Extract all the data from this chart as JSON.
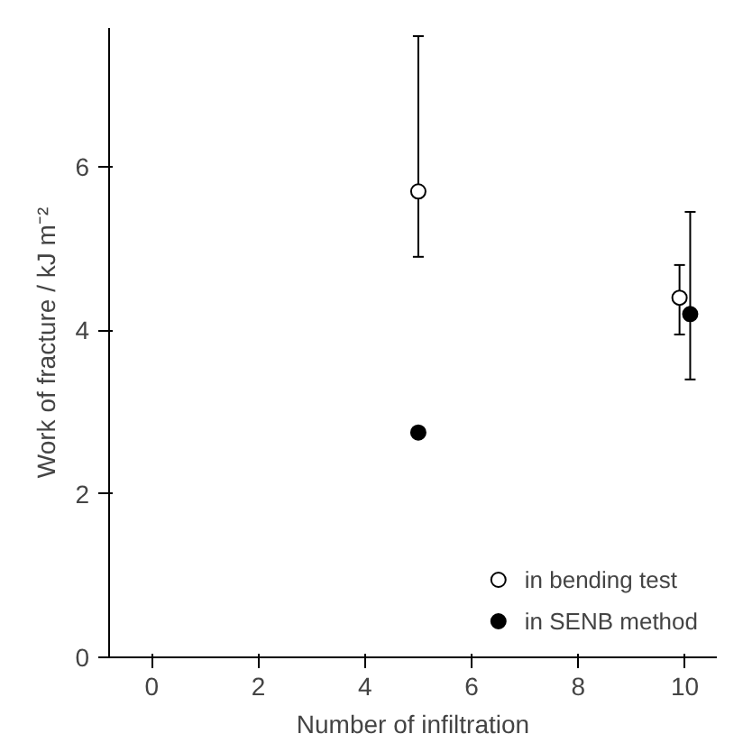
{
  "chart_data": {
    "type": "scatter",
    "xlabel": "Number of infiltration",
    "ylabel": "Work of fracture / kJ m⁻²",
    "xlim": [
      -0.8,
      10.6
    ],
    "xticks": [
      0,
      2,
      4,
      6,
      8,
      10
    ],
    "ylim": [
      0,
      7.7
    ],
    "yticks": [
      0,
      2,
      4,
      6
    ],
    "grid": false,
    "legend": "bottom right",
    "series": [
      {
        "name": "in bending test",
        "color": "#000000",
        "marker": "circle_open",
        "x": [
          5,
          9.9
        ],
        "values": [
          5.7,
          4.4
        ],
        "errors": [
          [
            4.9,
            7.6
          ],
          [
            3.95,
            4.8
          ]
        ]
      },
      {
        "name": "in SENB method",
        "color": "#000000",
        "marker": "circle",
        "x": [
          5,
          10.1
        ],
        "values": [
          2.75,
          4.2
        ],
        "errors": [
          null,
          [
            3.4,
            5.45
          ]
        ]
      }
    ]
  }
}
